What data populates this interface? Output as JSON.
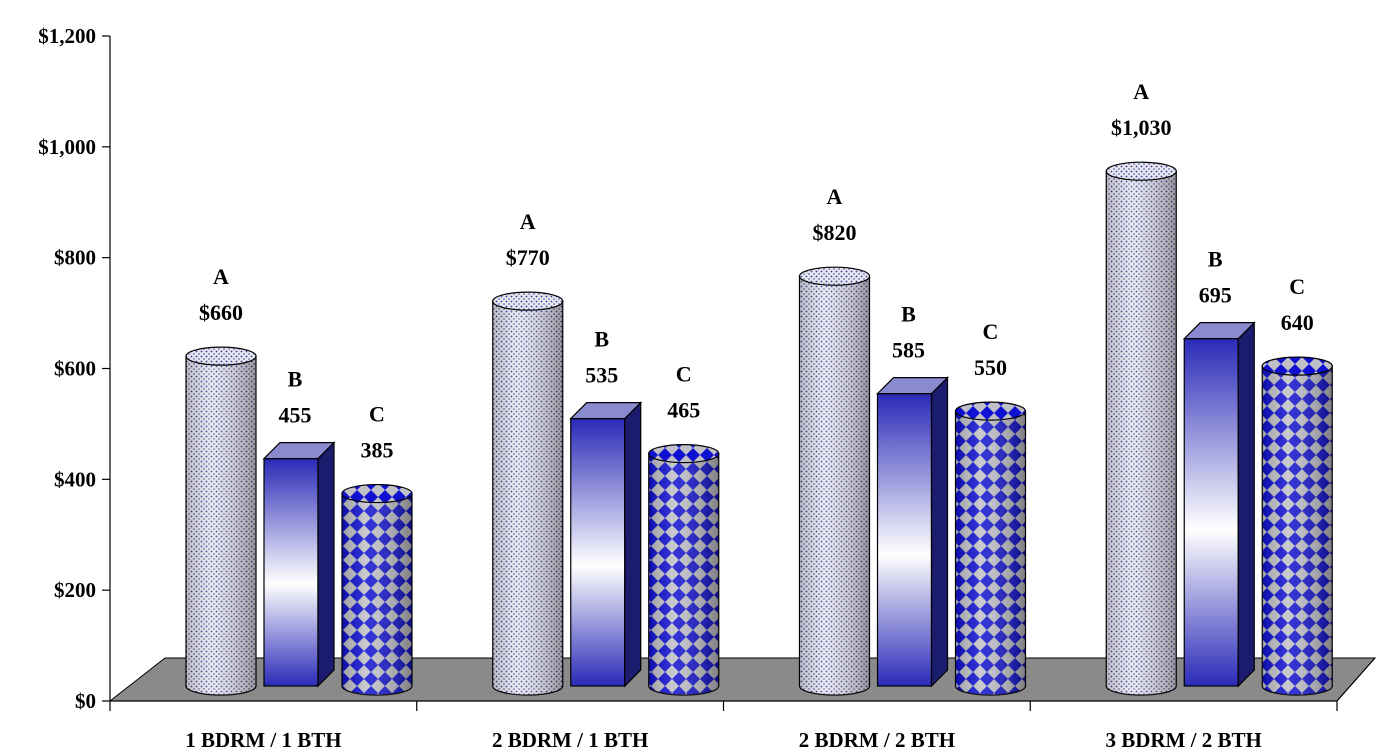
{
  "chart_data": {
    "type": "bar",
    "title": "",
    "xlabel": "",
    "ylabel": "",
    "ylim": [
      0,
      1200
    ],
    "yticks": [
      0,
      200,
      400,
      600,
      800,
      1000,
      1200
    ],
    "ytick_labels": [
      "$0",
      "$200",
      "$400",
      "$600",
      "$800",
      "$1,000",
      "$1,200"
    ],
    "categories": [
      "1 BDRM / 1 BTH",
      "2 BDRM / 1 BTH",
      "2 BDRM / 2 BTH",
      "3 BDRM / 2 BTH"
    ],
    "series": [
      {
        "name": "A",
        "shape": "cylinder",
        "fill": "dotted",
        "color": "#d8d8e8",
        "values": [
          660,
          770,
          820,
          1030
        ],
        "value_labels": [
          "$660",
          "$770",
          "$820",
          "$1,030"
        ]
      },
      {
        "name": "B",
        "shape": "box",
        "fill": "gradient",
        "color": "#2020a0",
        "values": [
          455,
          535,
          585,
          695
        ],
        "value_labels": [
          "455",
          "535",
          "585",
          "695"
        ]
      },
      {
        "name": "C",
        "shape": "cylinder",
        "fill": "diamond-checker",
        "color": "#1010cc",
        "values": [
          385,
          465,
          550,
          640
        ],
        "value_labels": [
          "385",
          "465",
          "550",
          "640"
        ]
      }
    ],
    "legend": "none",
    "grid": false,
    "floor_color": "#8a8a8a"
  }
}
